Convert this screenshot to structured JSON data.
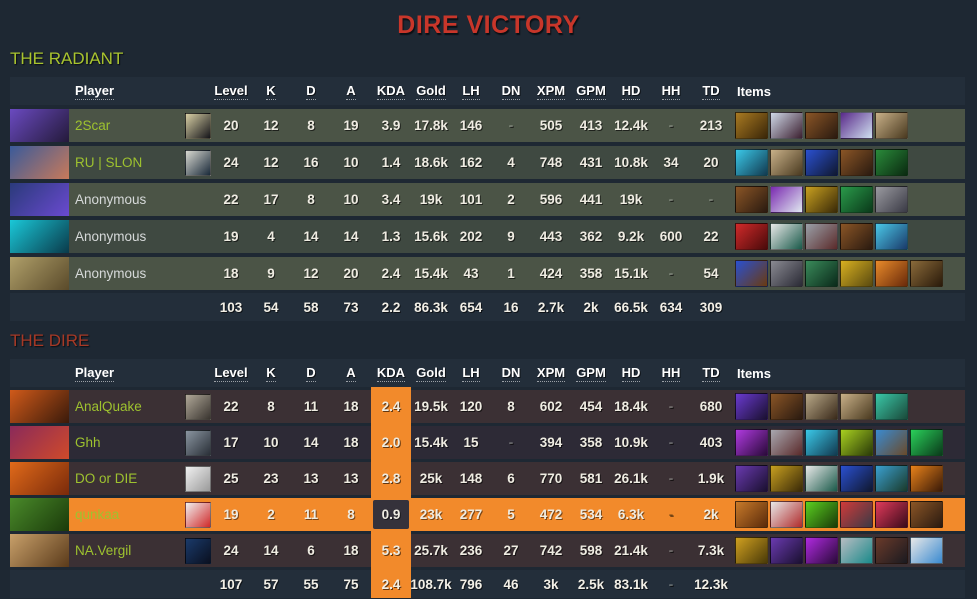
{
  "title": "DIRE VICTORY",
  "columns": [
    "Player",
    "Level",
    "K",
    "D",
    "A",
    "KDA",
    "Gold",
    "LH",
    "DN",
    "XPM",
    "GPM",
    "HD",
    "HH",
    "TD",
    "Items"
  ],
  "stat_keys": [
    "level",
    "k",
    "d",
    "a",
    "kda",
    "gold",
    "lh",
    "dn",
    "xpm",
    "gpm",
    "hd",
    "hh",
    "td"
  ],
  "accent_orange": "#f28a2b",
  "teams": [
    {
      "id": "radiant",
      "label": "THE RADIANT",
      "label_color": "#a9c42f",
      "kda_column_highlight": false,
      "players": [
        {
          "name": "2Scar",
          "named": true,
          "highlight": false,
          "portrait": [
            "#6a4ac0",
            "#241a3a"
          ],
          "avatar": [
            "#d8cfa4",
            "#15151a"
          ],
          "stats": {
            "level": "20",
            "k": "12",
            "d": "8",
            "a": "19",
            "kda": "3.9",
            "gold": "17.8k",
            "lh": "146",
            "dn": "-",
            "xpm": "505",
            "gpm": "413",
            "hd": "12.4k",
            "hh": "-",
            "td": "213"
          },
          "items": [
            [
              "#a97a22",
              "#3a2608"
            ],
            [
              "#cfd8e8",
              "#3c2030"
            ],
            [
              "#8a5526",
              "#2a1a10"
            ],
            [
              "#5a2a8a",
              "#cfe0f0"
            ],
            [
              "#c8b088",
              "#4a3a20"
            ]
          ]
        },
        {
          "name": "RU | SLON",
          "named": true,
          "highlight": false,
          "portrait": [
            "#3a5a9a",
            "#c87a5a"
          ],
          "avatar": [
            "#d8d8d0",
            "#1a2a3a"
          ],
          "stats": {
            "level": "24",
            "k": "12",
            "d": "16",
            "a": "10",
            "kda": "1.4",
            "gold": "18.6k",
            "lh": "162",
            "dn": "4",
            "xpm": "748",
            "gpm": "431",
            "hd": "10.8k",
            "hh": "34",
            "td": "20"
          },
          "items": [
            [
              "#3ac8e8",
              "#123a50"
            ],
            [
              "#c8b088",
              "#4a3a20"
            ],
            [
              "#2a50d0",
              "#101830"
            ],
            [
              "#8a5526",
              "#2a1a10"
            ],
            [
              "#2a8a3a",
              "#0a2a10"
            ]
          ]
        },
        {
          "name": "Anonymous",
          "named": false,
          "highlight": false,
          "portrait": [
            "#2a3a7a",
            "#6a4ad0"
          ],
          "avatar": null,
          "stats": {
            "level": "22",
            "k": "17",
            "d": "8",
            "a": "10",
            "kda": "3.4",
            "gold": "19k",
            "lh": "101",
            "dn": "2",
            "xpm": "596",
            "gpm": "441",
            "hd": "19k",
            "hh": "-",
            "td": "-"
          },
          "items": [
            [
              "#8a5526",
              "#2a1a10"
            ],
            [
              "#7a2ab0",
              "#e0e8f0"
            ],
            [
              "#c8a020",
              "#3a2a08"
            ],
            [
              "#2a9a4a",
              "#0a3a1a"
            ],
            [
              "#9a9aa0",
              "#3a3a45"
            ]
          ]
        },
        {
          "name": "Anonymous",
          "named": false,
          "highlight": false,
          "portrait": [
            "#1ac8d8",
            "#0a3a4a"
          ],
          "avatar": null,
          "stats": {
            "level": "19",
            "k": "4",
            "d": "14",
            "a": "14",
            "kda": "1.3",
            "gold": "15.6k",
            "lh": "202",
            "dn": "9",
            "xpm": "443",
            "gpm": "362",
            "hd": "9.2k",
            "hh": "600",
            "td": "22"
          },
          "items": [
            [
              "#d02a2a",
              "#4a0a0a"
            ],
            [
              "#e8e8e8",
              "#1a5a4a"
            ],
            [
              "#9aa0a8",
              "#5a2a2a"
            ],
            [
              "#8a5526",
              "#2a1a10"
            ],
            [
              "#4ac8e8",
              "#1a3a6a"
            ]
          ]
        },
        {
          "name": "Anonymous",
          "named": false,
          "highlight": false,
          "portrait": [
            "#b0a06a",
            "#5a4a2a"
          ],
          "avatar": null,
          "stats": {
            "level": "18",
            "k": "9",
            "d": "12",
            "a": "20",
            "kda": "2.4",
            "gold": "15.4k",
            "lh": "43",
            "dn": "1",
            "xpm": "424",
            "gpm": "358",
            "hd": "15.1k",
            "hh": "-",
            "td": "54"
          },
          "items": [
            [
              "#2a50d0",
              "#6a3a10"
            ],
            [
              "#8a8a92",
              "#2a2a35"
            ],
            [
              "#3a8a5a",
              "#0a2a1a"
            ],
            [
              "#d8b020",
              "#5a4a10"
            ],
            [
              "#e88a2a",
              "#6a2a0a"
            ],
            [
              "#8a6a3a",
              "#2a1a0a"
            ]
          ]
        }
      ],
      "totals": {
        "level": "103",
        "k": "54",
        "d": "58",
        "a": "73",
        "kda": "2.2",
        "gold": "86.3k",
        "lh": "654",
        "dn": "16",
        "xpm": "2.7k",
        "gpm": "2k",
        "hd": "66.5k",
        "hh": "634",
        "td": "309"
      }
    },
    {
      "id": "dire",
      "label": "THE DIRE",
      "label_color": "#a63926",
      "kda_column_highlight": true,
      "players": [
        {
          "name": "AnalQuake",
          "named": true,
          "highlight": false,
          "portrait": [
            "#d05a1a",
            "#3a1a0a"
          ],
          "avatar": [
            "#b0a898",
            "#3a3530"
          ],
          "stats": {
            "level": "22",
            "k": "8",
            "d": "11",
            "a": "18",
            "kda": "2.4",
            "gold": "19.5k",
            "lh": "120",
            "dn": "8",
            "xpm": "602",
            "gpm": "454",
            "hd": "18.4k",
            "hh": "-",
            "td": "680"
          },
          "items": [
            [
              "#6a3ad0",
              "#1a1030"
            ],
            [
              "#8a5526",
              "#2a1a10"
            ],
            [
              "#b8a888",
              "#3a2a1a"
            ],
            [
              "#c8b088",
              "#4a3a20"
            ],
            [
              "#3ac8a8",
              "#1a4a3a"
            ]
          ]
        },
        {
          "name": "Ghh",
          "named": true,
          "highlight": false,
          "portrait": [
            "#8a2a5a",
            "#d04a2a"
          ],
          "avatar": [
            "#8a95a0",
            "#2a3038"
          ],
          "stats": {
            "level": "17",
            "k": "10",
            "d": "14",
            "a": "18",
            "kda": "2.0",
            "gold": "15.4k",
            "lh": "15",
            "dn": "-",
            "xpm": "394",
            "gpm": "358",
            "hd": "10.9k",
            "hh": "-",
            "td": "403"
          },
          "items": [
            [
              "#b03ae0",
              "#2a0a3a"
            ],
            [
              "#a8a8b0",
              "#5a2a2a"
            ],
            [
              "#3ac8e8",
              "#123a50"
            ],
            [
              "#a8d020",
              "#2a3a08"
            ],
            [
              "#3a8ad0",
              "#6a4a2a"
            ],
            [
              "#2ad05a",
              "#0a3a1a"
            ]
          ]
        },
        {
          "name": "DO or DIE",
          "named": true,
          "highlight": false,
          "portrait": [
            "#e06a1a",
            "#7a2a0a"
          ],
          "avatar": [
            "#f0f0f0",
            "#9a9a9a"
          ],
          "stats": {
            "level": "25",
            "k": "23",
            "d": "13",
            "a": "13",
            "kda": "2.8",
            "gold": "25k",
            "lh": "148",
            "dn": "6",
            "xpm": "770",
            "gpm": "581",
            "hd": "26.1k",
            "hh": "-",
            "td": "1.9k"
          },
          "items": [
            [
              "#6a3ab0",
              "#1a1030"
            ],
            [
              "#c8a020",
              "#3a2a08"
            ],
            [
              "#e8e8e8",
              "#1a5a4a"
            ],
            [
              "#2a50d0",
              "#101830"
            ],
            [
              "#3aa0d0",
              "#1a3a2a"
            ],
            [
              "#e8821a",
              "#3a1a08"
            ]
          ]
        },
        {
          "name": "qunkaa",
          "named": true,
          "highlight": true,
          "portrait": [
            "#4a8a2a",
            "#1a3a0a"
          ],
          "avatar": [
            "#f0f0f0",
            "#d02a2a"
          ],
          "stats": {
            "level": "19",
            "k": "2",
            "d": "11",
            "a": "8",
            "kda": "0.9",
            "gold": "23k",
            "lh": "277",
            "dn": "5",
            "xpm": "472",
            "gpm": "534",
            "hd": "6.3k",
            "hh": "-",
            "td": "2k"
          },
          "items": [
            [
              "#c87a2a",
              "#5a2a0a"
            ],
            [
              "#e8e8e8",
              "#b02a2a"
            ],
            [
              "#5ad020",
              "#1a3a08"
            ],
            [
              "#d03a3a",
              "#3a3a45"
            ],
            [
              "#e03a5a",
              "#3a0a1a"
            ],
            [
              "#8a5526",
              "#2a1a10"
            ]
          ]
        },
        {
          "name": "NA.Vergil",
          "named": true,
          "highlight": false,
          "portrait": [
            "#c8a06a",
            "#5a3a1a"
          ],
          "avatar": [
            "#1a3a6a",
            "#0a1020"
          ],
          "stats": {
            "level": "24",
            "k": "14",
            "d": "6",
            "a": "18",
            "kda": "5.3",
            "gold": "25.7k",
            "lh": "236",
            "dn": "27",
            "xpm": "742",
            "gpm": "598",
            "hd": "21.4k",
            "hh": "-",
            "td": "7.3k"
          },
          "items": [
            [
              "#d0a020",
              "#4a3a08"
            ],
            [
              "#6a3ab0",
              "#1a1030"
            ],
            [
              "#b02ae0",
              "#2a0a3a"
            ],
            [
              "#b8bcc2",
              "#1a8a8a"
            ],
            [
              "#6a3a2a",
              "#1a1a20"
            ],
            [
              "#e8e8e8",
              "#3a8ad0"
            ]
          ]
        }
      ],
      "totals": {
        "level": "107",
        "k": "57",
        "d": "55",
        "a": "75",
        "kda": "2.4",
        "gold": "108.7k",
        "lh": "796",
        "dn": "46",
        "xpm": "3k",
        "gpm": "2.5k",
        "hd": "83.1k",
        "hh": "-",
        "td": "12.3k"
      }
    }
  ]
}
